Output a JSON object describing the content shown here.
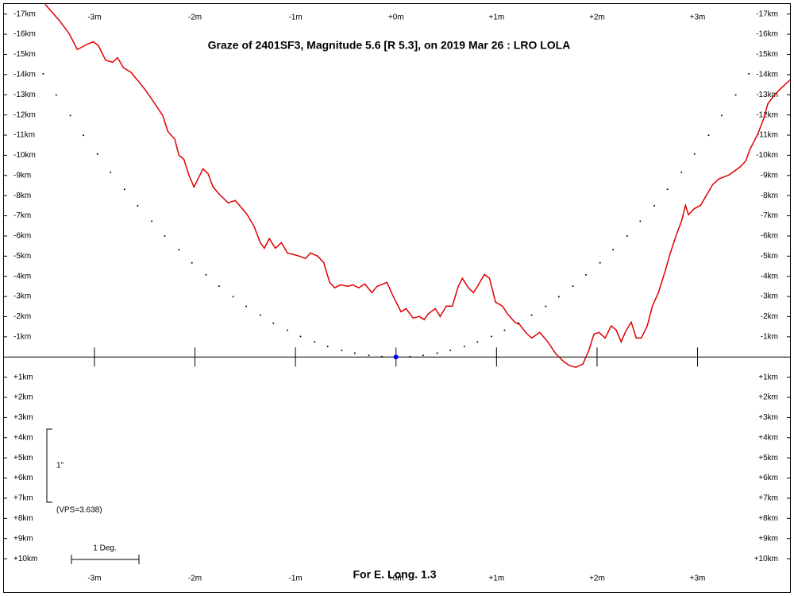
{
  "chart_data": {
    "type": "line",
    "title": "Graze of  2401SF3,  Magnitude 5.6 [R 5.3],  on 2019 Mar 26  :  LRO LOLA",
    "footer": "For E. Long. 1.3",
    "xlim": [
      -3.9,
      3.92
    ],
    "ylim": [
      -17.5,
      11.65
    ],
    "xticks": [
      {
        "value": -3,
        "label": "-3m"
      },
      {
        "value": -2,
        "label": "-2m"
      },
      {
        "value": -1,
        "label": "-1m"
      },
      {
        "value": 0,
        "label": "+0m"
      },
      {
        "value": 1,
        "label": "+1m"
      },
      {
        "value": 2,
        "label": "+2m"
      },
      {
        "value": 3,
        "label": "+3m"
      }
    ],
    "yticks": [
      {
        "value": -17,
        "label": "-17km"
      },
      {
        "value": -16,
        "label": "-16km"
      },
      {
        "value": -15,
        "label": "-15km"
      },
      {
        "value": -14,
        "label": "-14km"
      },
      {
        "value": -13,
        "label": "-13km"
      },
      {
        "value": -12,
        "label": "-12km"
      },
      {
        "value": -11,
        "label": "-11km"
      },
      {
        "value": -10,
        "label": "-10km"
      },
      {
        "value": -9,
        "label": "-9km"
      },
      {
        "value": -8,
        "label": "-8km"
      },
      {
        "value": -7,
        "label": "-7km"
      },
      {
        "value": -6,
        "label": "-6km"
      },
      {
        "value": -5,
        "label": "-5km"
      },
      {
        "value": -4,
        "label": "-4km"
      },
      {
        "value": -3,
        "label": "-3km"
      },
      {
        "value": -2,
        "label": "-2km"
      },
      {
        "value": -1,
        "label": "-1km"
      },
      {
        "value": 1,
        "label": "+1km"
      },
      {
        "value": 2,
        "label": "+2km"
      },
      {
        "value": 3,
        "label": "+3km"
      },
      {
        "value": 4,
        "label": "+4km"
      },
      {
        "value": 5,
        "label": "+5km"
      },
      {
        "value": 6,
        "label": "+6km"
      },
      {
        "value": 7,
        "label": "+7km"
      },
      {
        "value": 8,
        "label": "+8km"
      },
      {
        "value": 9,
        "label": "+9km"
      },
      {
        "value": 10,
        "label": "+10km"
      }
    ],
    "series": [
      {
        "style": "line",
        "color": "#dd0000",
        "x": [
          -3.49,
          -3.35,
          -3.25,
          -3.17,
          -3.07,
          -3.01,
          -2.96,
          -2.89,
          -2.82,
          -2.77,
          -2.71,
          -2.64,
          -2.56,
          -2.48,
          -2.4,
          -2.32,
          -2.27,
          -2.2,
          -2.16,
          -2.11,
          -2.06,
          -2.01,
          -1.97,
          -1.92,
          -1.87,
          -1.82,
          -1.75,
          -1.67,
          -1.6,
          -1.53,
          -1.48,
          -1.41,
          -1.35,
          -1.31,
          -1.26,
          -1.2,
          -1.14,
          -1.08,
          -0.96,
          -0.9,
          -0.85,
          -0.78,
          -0.72,
          -0.66,
          -0.61,
          -0.55,
          -0.48,
          -0.43,
          -0.37,
          -0.31,
          -0.24,
          -0.19,
          -0.09,
          -0.03,
          0.05,
          0.1,
          0.17,
          0.23,
          0.28,
          0.32,
          0.39,
          0.44,
          0.5,
          0.56,
          0.62,
          0.66,
          0.72,
          0.77,
          0.81,
          0.88,
          0.93,
          0.99,
          1.06,
          1.11,
          1.18,
          1.23,
          1.29,
          1.35,
          1.43,
          1.51,
          1.59,
          1.67,
          1.73,
          1.79,
          1.86,
          1.92,
          1.97,
          2.02,
          2.08,
          2.14,
          2.19,
          2.24,
          2.28,
          2.34,
          2.39,
          2.44,
          2.5,
          2.55,
          2.61,
          2.68,
          2.73,
          2.79,
          2.84,
          2.88,
          2.91,
          2.97,
          3.03,
          3.09,
          3.15,
          3.21,
          3.31,
          3.42,
          3.48,
          3.52,
          3.6,
          3.66,
          3.7,
          3.76,
          3.82,
          3.92
        ],
        "values": [
          -17.48,
          -16.69,
          -16.02,
          -15.24,
          -15.51,
          -15.63,
          -15.43,
          -14.72,
          -14.61,
          -14.84,
          -14.33,
          -14.13,
          -13.66,
          -13.15,
          -12.56,
          -11.97,
          -11.18,
          -10.79,
          -10.0,
          -9.8,
          -9.02,
          -8.43,
          -8.82,
          -9.33,
          -9.09,
          -8.43,
          -8.03,
          -7.64,
          -7.76,
          -7.36,
          -7.05,
          -6.46,
          -5.67,
          -5.39,
          -5.87,
          -5.39,
          -5.67,
          -5.16,
          -5.0,
          -4.88,
          -5.16,
          -5.0,
          -4.69,
          -3.7,
          -3.43,
          -3.58,
          -3.5,
          -3.58,
          -3.43,
          -3.62,
          -3.19,
          -3.5,
          -3.7,
          -3.03,
          -2.24,
          -2.4,
          -1.93,
          -2.01,
          -1.85,
          -2.13,
          -2.4,
          -2.01,
          -2.52,
          -2.52,
          -3.5,
          -3.9,
          -3.43,
          -3.19,
          -3.5,
          -4.09,
          -3.9,
          -2.72,
          -2.52,
          -2.13,
          -1.73,
          -1.61,
          -1.22,
          -0.94,
          -1.22,
          -0.75,
          -0.16,
          0.24,
          0.43,
          0.51,
          0.35,
          -0.35,
          -1.14,
          -1.22,
          -0.94,
          -1.54,
          -1.34,
          -0.75,
          -1.22,
          -1.73,
          -0.94,
          -0.94,
          -1.54,
          -2.52,
          -3.19,
          -4.29,
          -5.16,
          -6.06,
          -6.73,
          -7.52,
          -7.05,
          -7.36,
          -7.52,
          -8.03,
          -8.54,
          -8.82,
          -9.02,
          -9.41,
          -9.72,
          -10.28,
          -11.06,
          -11.85,
          -12.56,
          -12.95,
          -13.27,
          -13.74
        ]
      },
      {
        "style": "dots",
        "color": "#000000",
        "x": [
          -3.51,
          -3.38,
          -3.24,
          -3.11,
          -2.97,
          -2.84,
          -2.7,
          -2.57,
          -2.43,
          -2.3,
          -2.16,
          -2.03,
          -1.89,
          -1.76,
          -1.62,
          -1.49,
          -1.35,
          -1.22,
          -1.08,
          -0.95,
          -0.81,
          -0.68,
          -0.54,
          -0.41,
          -0.27,
          -0.14,
          0.14,
          0.27,
          0.41,
          0.54,
          0.68,
          0.81,
          0.95,
          1.08,
          1.22,
          1.35,
          1.49,
          1.62,
          1.76,
          1.89,
          2.03,
          2.16,
          2.3,
          2.43,
          2.57,
          2.7,
          2.84,
          2.97,
          3.11,
          3.24,
          3.38,
          3.51
        ],
        "values": [
          -14.04,
          -12.99,
          -11.97,
          -10.99,
          -10.06,
          -9.16,
          -8.31,
          -7.5,
          -6.73,
          -6.0,
          -5.32,
          -4.67,
          -4.07,
          -3.51,
          -2.99,
          -2.51,
          -2.08,
          -1.68,
          -1.33,
          -1.02,
          -0.75,
          -0.52,
          -0.33,
          -0.19,
          -0.08,
          -0.02,
          -0.02,
          -0.08,
          -0.19,
          -0.33,
          -0.52,
          -0.75,
          -1.02,
          -1.33,
          -1.68,
          -2.08,
          -2.51,
          -2.99,
          -3.51,
          -4.07,
          -4.67,
          -5.32,
          -6.0,
          -6.73,
          -7.5,
          -8.31,
          -9.16,
          -10.06,
          -10.99,
          -11.97,
          -12.99,
          -14.04
        ]
      }
    ],
    "star": {
      "x": 0,
      "y": 0,
      "color": "#0000ff"
    },
    "scale_label": "1\"",
    "vps_label": "(VPS=3.638)",
    "degree_label": "1 Deg."
  }
}
